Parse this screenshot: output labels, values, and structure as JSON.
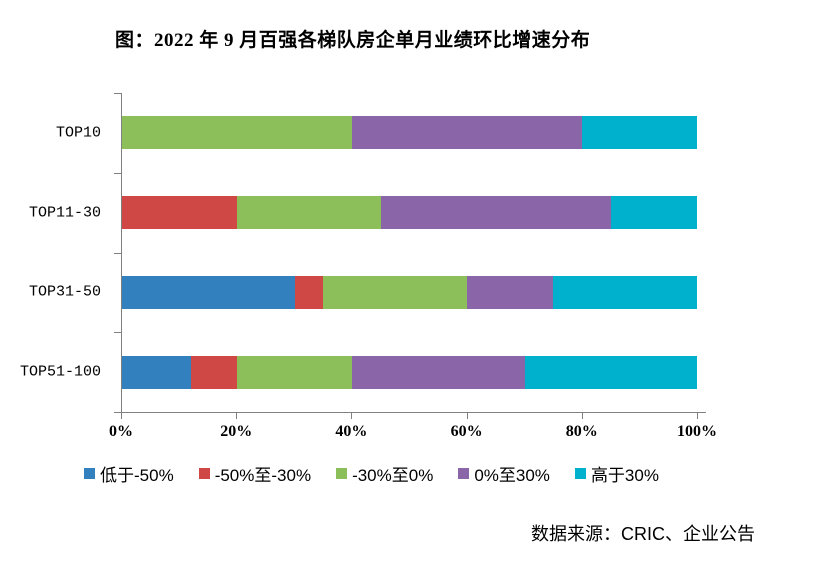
{
  "title": "图：2022 年 9 月百强各梯队房企单月业绩环比增速分布",
  "source": "数据来源：CRIC、企业公告",
  "chart_data": {
    "type": "bar",
    "orientation": "horizontal",
    "stacked": true,
    "title": "图：2022 年 9 月百强各梯队房企单月业绩环比增速分布",
    "categories": [
      "TOP10",
      "TOP11-30",
      "TOP31-50",
      "TOP51-100"
    ],
    "series": [
      {
        "name": "低于-50%",
        "color": "#3380BF",
        "values": [
          0,
          0,
          30,
          12
        ]
      },
      {
        "name": "-50%至-30%",
        "color": "#D04846",
        "values": [
          0,
          20,
          5,
          8
        ]
      },
      {
        "name": "-30%至0%",
        "color": "#8CBF5A",
        "values": [
          40,
          25,
          25,
          20
        ]
      },
      {
        "name": "0%至30%",
        "color": "#8A65A8",
        "values": [
          40,
          40,
          15,
          30
        ]
      },
      {
        "name": "高于30%",
        "color": "#00B1CD",
        "values": [
          20,
          15,
          25,
          30
        ]
      }
    ],
    "x_ticks": [
      "0%",
      "20%",
      "40%",
      "60%",
      "80%",
      "100%"
    ],
    "xlim": [
      0,
      100
    ],
    "grid": false,
    "legend_position": "bottom",
    "axis_color": "#808080"
  }
}
